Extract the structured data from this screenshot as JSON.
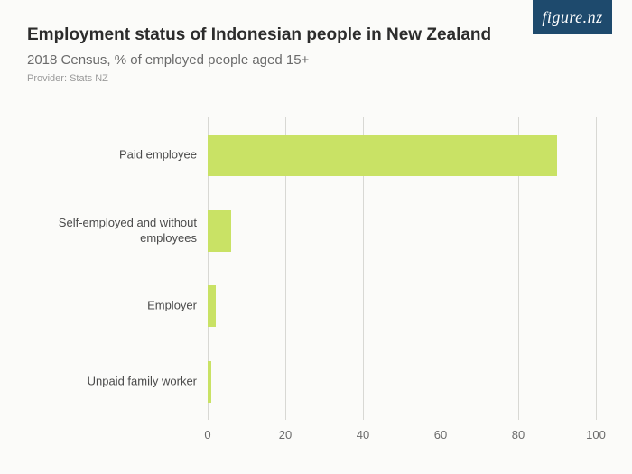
{
  "logo_text": "figure.nz",
  "title": "Employment status of Indonesian people in New Zealand",
  "subtitle": "2018 Census, % of employed people aged 15+",
  "provider": "Provider: Stats NZ",
  "chart": {
    "type": "bar-horizontal",
    "xlim": [
      0,
      100
    ],
    "xtick_step": 20,
    "xticks": [
      0,
      20,
      40,
      60,
      80,
      100
    ],
    "bar_color": "#c9e265",
    "grid_color": "#d8d8d4",
    "background_color": "#fbfbf9",
    "label_fontsize": 13,
    "tick_fontsize": 13,
    "bar_height_ratio": 0.55,
    "categories": [
      "Paid employee",
      "Self-employed and without employees",
      "Employer",
      "Unpaid family worker"
    ],
    "values": [
      90,
      6,
      2,
      1
    ]
  }
}
